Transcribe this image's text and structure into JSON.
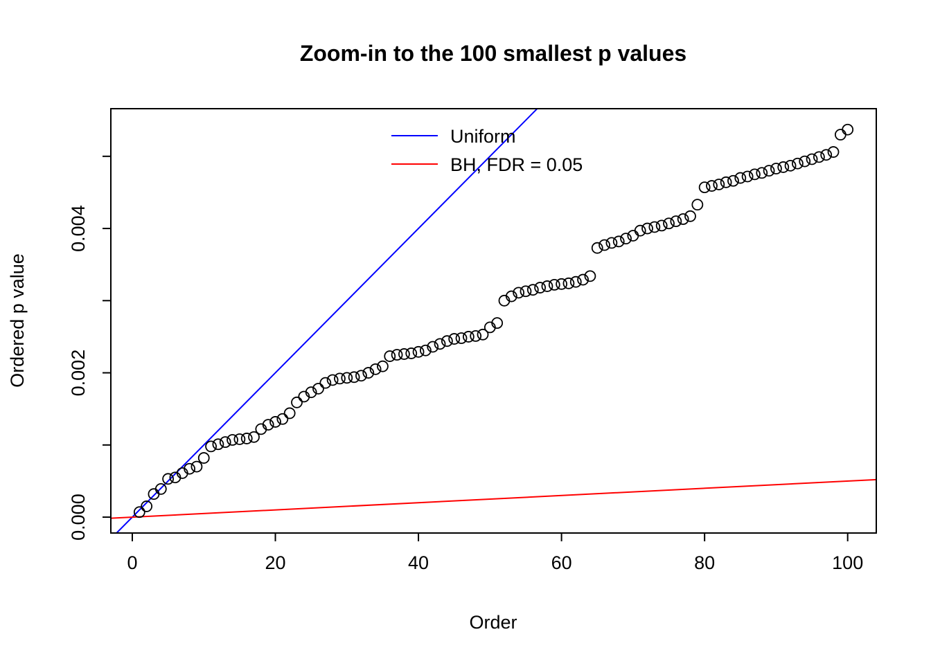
{
  "chart_data": {
    "type": "scatter",
    "title": "Zoom-in to the 100 smallest p values",
    "xlabel": "Order",
    "ylabel": "Ordered p value",
    "xlim": [
      -3,
      104
    ],
    "ylim": [
      -0.00022,
      0.00566
    ],
    "grid": false,
    "legend_position": "top",
    "x_ticks": [
      0,
      20,
      40,
      60,
      80,
      100
    ],
    "x_tick_labels": [
      "0",
      "20",
      "40",
      "60",
      "80",
      "100"
    ],
    "y_ticks": [
      {
        "value": 0.0,
        "label": "0.000"
      },
      {
        "value": 0.001,
        "label": ""
      },
      {
        "value": 0.002,
        "label": "0.002"
      },
      {
        "value": 0.003,
        "label": ""
      },
      {
        "value": 0.004,
        "label": "0.004"
      },
      {
        "value": 0.005,
        "label": ""
      }
    ],
    "lines": [
      {
        "name": "uniform",
        "label": "Uniform",
        "color": "#0000FF",
        "slope": 0.0001,
        "intercept": 0
      },
      {
        "name": "bh-fdr",
        "label": "BH, FDR = 0.05",
        "color": "#FF0000",
        "slope": 5e-06,
        "intercept": 0
      }
    ],
    "points": {
      "marker": "open-circle",
      "color": "#000000",
      "x": [
        1,
        2,
        3,
        4,
        5,
        6,
        7,
        8,
        9,
        10,
        11,
        12,
        13,
        14,
        15,
        16,
        17,
        18,
        19,
        20,
        21,
        22,
        23,
        24,
        25,
        26,
        27,
        28,
        29,
        30,
        31,
        32,
        33,
        34,
        35,
        36,
        37,
        38,
        39,
        40,
        41,
        42,
        43,
        44,
        45,
        46,
        47,
        48,
        49,
        50,
        51,
        52,
        53,
        54,
        55,
        56,
        57,
        58,
        59,
        60,
        61,
        62,
        63,
        64,
        65,
        66,
        67,
        68,
        69,
        70,
        71,
        72,
        73,
        74,
        75,
        76,
        77,
        78,
        79,
        80,
        81,
        82,
        83,
        84,
        85,
        86,
        87,
        88,
        89,
        90,
        91,
        92,
        93,
        94,
        95,
        96,
        97,
        98,
        99,
        100
      ],
      "y": [
        7e-05,
        0.00015,
        0.00032,
        0.00039,
        0.00053,
        0.00055,
        0.00061,
        0.00067,
        0.0007,
        0.00082,
        0.00098,
        0.00101,
        0.00104,
        0.00107,
        0.00108,
        0.00109,
        0.00111,
        0.00122,
        0.00128,
        0.00132,
        0.00136,
        0.00144,
        0.00159,
        0.00167,
        0.00173,
        0.00178,
        0.00186,
        0.0019,
        0.00192,
        0.00193,
        0.00194,
        0.00196,
        0.002,
        0.00205,
        0.00209,
        0.00223,
        0.00225,
        0.00226,
        0.00227,
        0.00229,
        0.00231,
        0.00236,
        0.0024,
        0.00244,
        0.00247,
        0.00248,
        0.0025,
        0.00251,
        0.00253,
        0.00263,
        0.00269,
        0.003,
        0.00306,
        0.00311,
        0.00313,
        0.00315,
        0.00318,
        0.0032,
        0.00322,
        0.00323,
        0.00324,
        0.00326,
        0.00329,
        0.00334,
        0.00373,
        0.00377,
        0.0038,
        0.00382,
        0.00386,
        0.0039,
        0.00397,
        0.004,
        0.00402,
        0.00404,
        0.00407,
        0.0041,
        0.00413,
        0.00417,
        0.00433,
        0.00457,
        0.00459,
        0.00461,
        0.00464,
        0.00466,
        0.0047,
        0.00472,
        0.00475,
        0.00477,
        0.0048,
        0.00483,
        0.00485,
        0.00487,
        0.0049,
        0.00493,
        0.00496,
        0.00499,
        0.00502,
        0.00506,
        0.0053,
        0.00537
      ]
    }
  }
}
